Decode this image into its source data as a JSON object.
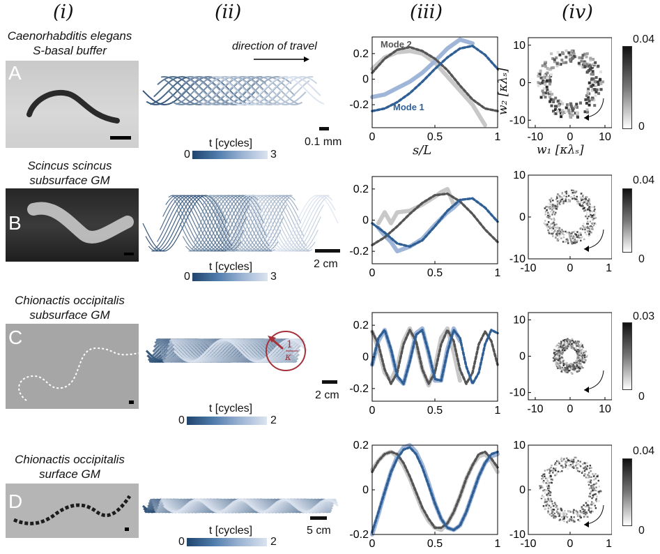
{
  "columns": [
    "(i)",
    "(ii)",
    "(iii)",
    "(iv)"
  ],
  "rows": [
    {
      "letter": "A",
      "title1": "Caenorhabditis elegans",
      "title2": "S-basal buffer",
      "scale": "0.1 mm",
      "cbar_max": "3",
      "phase_max": "0.04"
    },
    {
      "letter": "B",
      "title1": "Scincus scincus",
      "title2": "subsurface GM",
      "scale": "2 cm",
      "cbar_max": "3",
      "phase_max": "0.04"
    },
    {
      "letter": "C",
      "title1": "Chionactis occipitalis",
      "title2": "subsurface GM",
      "scale": "2 cm",
      "cbar_max": "2",
      "phase_max": "0.03"
    },
    {
      "letter": "D",
      "title1": "Chionactis occipitalis",
      "title2": "surface GM",
      "scale": "5 cm",
      "cbar_max": "2",
      "phase_max": "0.04"
    }
  ],
  "colorbar": {
    "title": "t [cycles]",
    "min": "0"
  },
  "phase_min": "0",
  "direction_label": "direction of travel",
  "curvature_label": {
    "num": "1",
    "den": "κ"
  },
  "mode_labels": {
    "mode1": "Mode 1",
    "mode2": "Mode 2"
  },
  "axis_labels": {
    "s_over_L": "s/L",
    "w1": "w₁ [κλₛ]",
    "w2": "w₂ [κλₛ]"
  },
  "colors": {
    "mode1": "#2f5f95",
    "mode1_light": "#9fb6d8",
    "mode2": "#555555",
    "mode2_light": "#c8c8c8",
    "curv": "#a5323a"
  },
  "chart_data": [
    {
      "type": "line",
      "panel": "A(iii)",
      "xlabel": "s/L",
      "xlim": [
        0,
        1
      ],
      "ylim": [
        -0.38,
        0.33
      ],
      "yticks": [
        "0.2",
        "0",
        "-0.2"
      ],
      "xticks": [
        "0",
        "0.5",
        "1"
      ],
      "series": [
        {
          "name": "Mode 2",
          "x": [
            0,
            0.1,
            0.2,
            0.3,
            0.4,
            0.5,
            0.6,
            0.7,
            0.8,
            0.9,
            1.0
          ],
          "values": [
            0.05,
            0.16,
            0.23,
            0.25,
            0.22,
            0.16,
            0.07,
            -0.05,
            -0.16,
            -0.23,
            -0.25
          ]
        },
        {
          "name": "Mode 1",
          "x": [
            0,
            0.1,
            0.2,
            0.3,
            0.4,
            0.5,
            0.6,
            0.7,
            0.8,
            0.9,
            1.0
          ],
          "values": [
            -0.25,
            -0.23,
            -0.18,
            -0.11,
            -0.02,
            0.08,
            0.17,
            0.24,
            0.26,
            0.19,
            0.08
          ]
        },
        {
          "x": [
            0,
            0.1,
            0.2,
            0.3,
            0.4,
            0.5,
            0.6,
            0.7,
            0.8,
            0.9
          ],
          "values": [
            0.08,
            0.17,
            0.21,
            0.22,
            0.2,
            0.13,
            0.02,
            -0.09,
            -0.2,
            -0.36
          ]
        },
        {
          "x": [
            0,
            0.1,
            0.2,
            0.3,
            0.4,
            0.5,
            0.6,
            0.7,
            0.8
          ],
          "values": [
            -0.14,
            -0.12,
            -0.07,
            -0.02,
            0.05,
            0.14,
            0.24,
            0.31,
            0.28
          ]
        }
      ]
    },
    {
      "type": "line",
      "panel": "B(iii)",
      "xlim": [
        0,
        1
      ],
      "ylim": [
        -0.28,
        0.28
      ],
      "yticks": [
        "0.2",
        "0",
        "-0.2"
      ],
      "xticks": [
        "0",
        "0.5",
        "1"
      ],
      "series": [
        {
          "x": [
            0,
            0.1,
            0.2,
            0.3,
            0.4,
            0.5,
            0.6,
            0.7,
            0.8,
            0.9,
            1.0
          ],
          "values": [
            -0.16,
            -0.11,
            -0.04,
            0.04,
            0.11,
            0.16,
            0.17,
            0.12,
            0.04,
            -0.06,
            -0.14
          ]
        },
        {
          "x": [
            0,
            0.1,
            0.2,
            0.3,
            0.4,
            0.5,
            0.6,
            0.7,
            0.8,
            0.9,
            1.0
          ],
          "values": [
            -0.02,
            -0.08,
            -0.15,
            -0.17,
            -0.13,
            -0.04,
            0.06,
            0.13,
            0.14,
            0.08,
            -0.01
          ]
        },
        {
          "x": [
            0.05,
            0.1,
            0.15,
            0.2,
            0.3,
            0.4,
            0.5,
            0.55,
            0.6,
            0.65,
            0.7
          ],
          "values": [
            -0.02,
            0.05,
            -0.02,
            0.05,
            0.06,
            0.1,
            0.15,
            0.18,
            0.2,
            0.1,
            0.12
          ]
        },
        {
          "x": [
            0.05,
            0.1,
            0.15,
            0.2,
            0.3,
            0.4,
            0.5,
            0.6,
            0.65,
            0.7
          ],
          "values": [
            -0.05,
            -0.1,
            -0.14,
            -0.2,
            -0.17,
            -0.12,
            -0.03,
            0.05,
            0.08,
            0.12
          ]
        }
      ]
    },
    {
      "type": "line",
      "panel": "C(iii)",
      "xlim": [
        0,
        1
      ],
      "ylim": [
        -0.28,
        0.28
      ],
      "yticks": [
        "0.2",
        "0",
        "-0.2"
      ],
      "xticks": [
        "0",
        "0.5",
        "1"
      ],
      "series": [
        {
          "x": [
            0,
            0.05,
            0.1,
            0.15,
            0.2,
            0.25,
            0.3,
            0.35,
            0.4,
            0.45,
            0.5,
            0.55,
            0.6,
            0.65,
            0.7,
            0.75,
            0.8,
            0.85,
            0.9,
            0.95,
            1.0
          ],
          "values": [
            0.16,
            0.08,
            -0.08,
            -0.17,
            -0.1,
            0.08,
            0.17,
            0.1,
            -0.08,
            -0.17,
            -0.1,
            0.08,
            0.17,
            0.1,
            -0.08,
            -0.17,
            -0.1,
            0.08,
            0.16,
            0.1,
            -0.05
          ]
        },
        {
          "x": [
            0,
            0.05,
            0.1,
            0.15,
            0.2,
            0.25,
            0.3,
            0.35,
            0.4,
            0.45,
            0.5,
            0.55,
            0.6,
            0.65,
            0.7,
            0.75,
            0.8,
            0.85,
            0.9,
            0.95,
            1.0
          ],
          "values": [
            -0.05,
            0.12,
            0.17,
            0.05,
            -0.12,
            -0.17,
            -0.03,
            0.14,
            0.17,
            0.03,
            -0.14,
            -0.15,
            0.03,
            0.17,
            0.12,
            -0.06,
            -0.17,
            -0.1,
            0.08,
            0.17,
            0.15
          ]
        },
        {
          "x": [
            0,
            0.05,
            0.1,
            0.15,
            0.2,
            0.25,
            0.3,
            0.35,
            0.4,
            0.45,
            0.5,
            0.55,
            0.6,
            0.65,
            0.7
          ],
          "values": [
            0.16,
            0.05,
            -0.1,
            -0.15,
            -0.06,
            0.1,
            0.18,
            0.08,
            -0.08,
            -0.18,
            -0.07,
            0.12,
            0.18,
            0.03,
            -0.15
          ]
        },
        {
          "x": [
            0,
            0.05,
            0.1,
            0.15,
            0.2,
            0.25,
            0.3,
            0.35,
            0.4,
            0.45,
            0.5,
            0.55,
            0.6,
            0.65,
            0.7
          ],
          "values": [
            -0.05,
            0.1,
            0.17,
            0.04,
            -0.13,
            -0.17,
            -0.02,
            0.15,
            0.18,
            0.02,
            -0.15,
            -0.15,
            0.05,
            0.18,
            0.1
          ]
        }
      ]
    },
    {
      "type": "line",
      "panel": "D(iii)",
      "xlim": [
        0,
        1
      ],
      "ylim": [
        -0.2,
        0.2
      ],
      "yticks": [
        "0.2",
        "0",
        "-0.2"
      ],
      "xticks": [
        "0",
        "0.5",
        "1"
      ],
      "series": [
        {
          "x": [
            0,
            0.05,
            0.1,
            0.15,
            0.2,
            0.25,
            0.3,
            0.35,
            0.4,
            0.45,
            0.5,
            0.55,
            0.6,
            0.65,
            0.7,
            0.75,
            0.8,
            0.85,
            0.9,
            0.95,
            1.0
          ],
          "values": [
            0.08,
            0.13,
            0.16,
            0.17,
            0.16,
            0.12,
            0.06,
            -0.01,
            -0.08,
            -0.13,
            -0.17,
            -0.17,
            -0.15,
            -0.1,
            -0.03,
            0.05,
            0.11,
            0.16,
            0.17,
            0.14,
            0.1
          ]
        },
        {
          "x": [
            0,
            0.05,
            0.1,
            0.15,
            0.2,
            0.25,
            0.3,
            0.35,
            0.4,
            0.45,
            0.5,
            0.55,
            0.6,
            0.65,
            0.7,
            0.75,
            0.8,
            0.85,
            0.9,
            0.95,
            1.0
          ],
          "values": [
            -0.19,
            -0.1,
            -0.01,
            0.08,
            0.14,
            0.18,
            0.19,
            0.16,
            0.1,
            0.02,
            -0.06,
            -0.13,
            -0.17,
            -0.18,
            -0.16,
            -0.1,
            -0.02,
            0.06,
            0.12,
            0.16,
            0.17
          ]
        },
        {
          "x": [
            0,
            0.05,
            0.1,
            0.15,
            0.2,
            0.25,
            0.3,
            0.35,
            0.4,
            0.45,
            0.5,
            0.55,
            0.6,
            0.65,
            0.7,
            0.75,
            0.8,
            0.85,
            0.9,
            0.95,
            1.0
          ],
          "values": [
            0.09,
            0.13,
            0.16,
            0.17,
            0.15,
            0.11,
            0.05,
            -0.02,
            -0.09,
            -0.14,
            -0.17,
            -0.18,
            -0.15,
            -0.1,
            -0.03,
            0.05,
            0.11,
            0.15,
            0.16,
            0.13,
            0.08
          ]
        },
        {
          "x": [
            0,
            0.05,
            0.1,
            0.15,
            0.2,
            0.25,
            0.3,
            0.35,
            0.4,
            0.45,
            0.5,
            0.55,
            0.6,
            0.65,
            0.7,
            0.75,
            0.8,
            0.85,
            0.9,
            0.95,
            1.0
          ],
          "values": [
            -0.2,
            -0.11,
            -0.01,
            0.08,
            0.15,
            0.19,
            0.2,
            0.17,
            0.11,
            0.03,
            -0.06,
            -0.13,
            -0.17,
            -0.18,
            -0.16,
            -0.1,
            -0.02,
            0.06,
            0.12,
            0.15,
            0.16
          ]
        }
      ]
    },
    {
      "type": "heatmap",
      "panel": "A(iv)",
      "xlabel": "w₁ [κλₛ]",
      "ylabel": "w₂ [κλₛ]",
      "xlim": [
        -12,
        12
      ],
      "ylim": [
        -12,
        12
      ],
      "xticks": [
        "-10",
        "0",
        "10"
      ],
      "yticks": [
        "10",
        "0",
        "-10"
      ],
      "ring_radius": 7.5
    },
    {
      "type": "heatmap",
      "panel": "B(iv)",
      "xlim": [
        -10,
        10
      ],
      "ylim": [
        -10,
        10
      ],
      "xticks": [
        "-10",
        "0",
        "10"
      ],
      "yticks": [
        "10",
        "0",
        "-10"
      ],
      "ring_radius": 5
    },
    {
      "type": "heatmap",
      "panel": "C(iv)",
      "xlim": [
        -12,
        12
      ],
      "ylim": [
        -12,
        12
      ],
      "xticks": [
        "-10",
        "0",
        "10"
      ],
      "yticks": [
        "10",
        "0",
        "-10"
      ],
      "ring_radius": 3.5
    },
    {
      "type": "heatmap",
      "panel": "D(iv)",
      "xlim": [
        -10,
        10
      ],
      "ylim": [
        -10,
        10
      ],
      "xticks": [
        "-10",
        "0",
        "10"
      ],
      "yticks": [
        "10",
        "0",
        "-10"
      ],
      "ring_radius": 6
    }
  ]
}
